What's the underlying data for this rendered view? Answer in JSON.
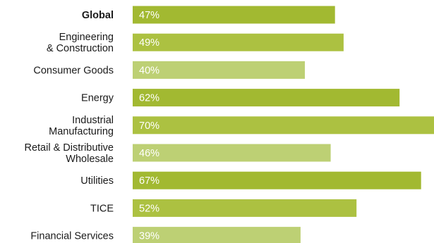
{
  "chart_data": {
    "type": "bar",
    "orientation": "horizontal",
    "categories": [
      [
        "Global"
      ],
      [
        "Engineering",
        "& Construction"
      ],
      [
        "Consumer Goods"
      ],
      [
        "Energy"
      ],
      [
        "Industrial",
        "Manufacturing"
      ],
      [
        "Retail & Distributive",
        "Wholesale"
      ],
      [
        "Utilities"
      ],
      [
        "TICE"
      ],
      [
        "Financial Services"
      ]
    ],
    "values": [
      47,
      49,
      40,
      62,
      70,
      46,
      67,
      52,
      39
    ],
    "value_labels": [
      "47%",
      "49%",
      "40%",
      "62%",
      "70%",
      "46%",
      "67%",
      "52%",
      "39%"
    ],
    "bar_colors": [
      "#a2b931",
      "#acc141",
      "#bdd074",
      "#a2b931",
      "#acc141",
      "#bdd074",
      "#a2b931",
      "#acc141",
      "#bdd074"
    ],
    "bold_categories": [
      0
    ],
    "xlim": [
      0,
      70
    ],
    "title": "",
    "xlabel": "",
    "ylabel": "",
    "grid": false,
    "legend": "none"
  }
}
